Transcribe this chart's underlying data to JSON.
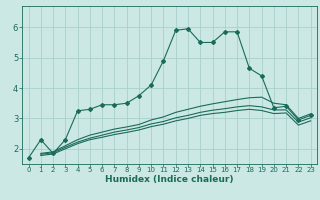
{
  "xlabel": "Humidex (Indice chaleur)",
  "bg_color": "#cce8e4",
  "grid_color": "#aacfca",
  "line_color": "#1a6b5a",
  "xlim": [
    -0.5,
    23.5
  ],
  "ylim": [
    1.5,
    6.7
  ],
  "xticks": [
    0,
    1,
    2,
    3,
    4,
    5,
    6,
    7,
    8,
    9,
    10,
    11,
    12,
    13,
    14,
    15,
    16,
    17,
    18,
    19,
    20,
    21,
    22,
    23
  ],
  "yticks": [
    2,
    3,
    4,
    5,
    6
  ],
  "series": [
    {
      "x": [
        0,
        1,
        2,
        3,
        4,
        5,
        6,
        7,
        8,
        9,
        10,
        11,
        12,
        13,
        14,
        15,
        16,
        17,
        18,
        19,
        20,
        21,
        22,
        23
      ],
      "y": [
        1.7,
        2.3,
        1.85,
        2.3,
        3.25,
        3.3,
        3.45,
        3.45,
        3.5,
        3.75,
        4.1,
        4.9,
        5.9,
        5.95,
        5.5,
        5.5,
        5.85,
        5.85,
        4.65,
        4.4,
        3.35,
        3.4,
        2.95,
        3.1
      ],
      "marker": true
    },
    {
      "x": [
        1,
        2,
        3,
        4,
        5,
        6,
        7,
        8,
        9,
        10,
        11,
        12,
        13,
        14,
        15,
        16,
        17,
        18,
        19,
        20,
        21,
        22,
        23
      ],
      "y": [
        1.85,
        1.9,
        2.1,
        2.3,
        2.45,
        2.55,
        2.65,
        2.72,
        2.8,
        2.95,
        3.05,
        3.2,
        3.3,
        3.4,
        3.48,
        3.55,
        3.62,
        3.68,
        3.7,
        3.5,
        3.45,
        3.0,
        3.15
      ],
      "marker": false
    },
    {
      "x": [
        1,
        2,
        3,
        4,
        5,
        6,
        7,
        8,
        9,
        10,
        11,
        12,
        13,
        14,
        15,
        16,
        17,
        18,
        19,
        20,
        21,
        22,
        23
      ],
      "y": [
        1.82,
        1.87,
        2.05,
        2.22,
        2.35,
        2.45,
        2.55,
        2.62,
        2.7,
        2.82,
        2.9,
        3.02,
        3.1,
        3.2,
        3.27,
        3.32,
        3.38,
        3.42,
        3.38,
        3.28,
        3.28,
        2.88,
        3.02
      ],
      "marker": false
    },
    {
      "x": [
        1,
        2,
        3,
        4,
        5,
        6,
        7,
        8,
        9,
        10,
        11,
        12,
        13,
        14,
        15,
        16,
        17,
        18,
        19,
        20,
        21,
        22,
        23
      ],
      "y": [
        1.78,
        1.83,
        2.0,
        2.17,
        2.3,
        2.38,
        2.47,
        2.54,
        2.62,
        2.73,
        2.81,
        2.92,
        3.0,
        3.1,
        3.16,
        3.2,
        3.26,
        3.3,
        3.26,
        3.16,
        3.18,
        2.78,
        2.92
      ],
      "marker": false
    }
  ]
}
